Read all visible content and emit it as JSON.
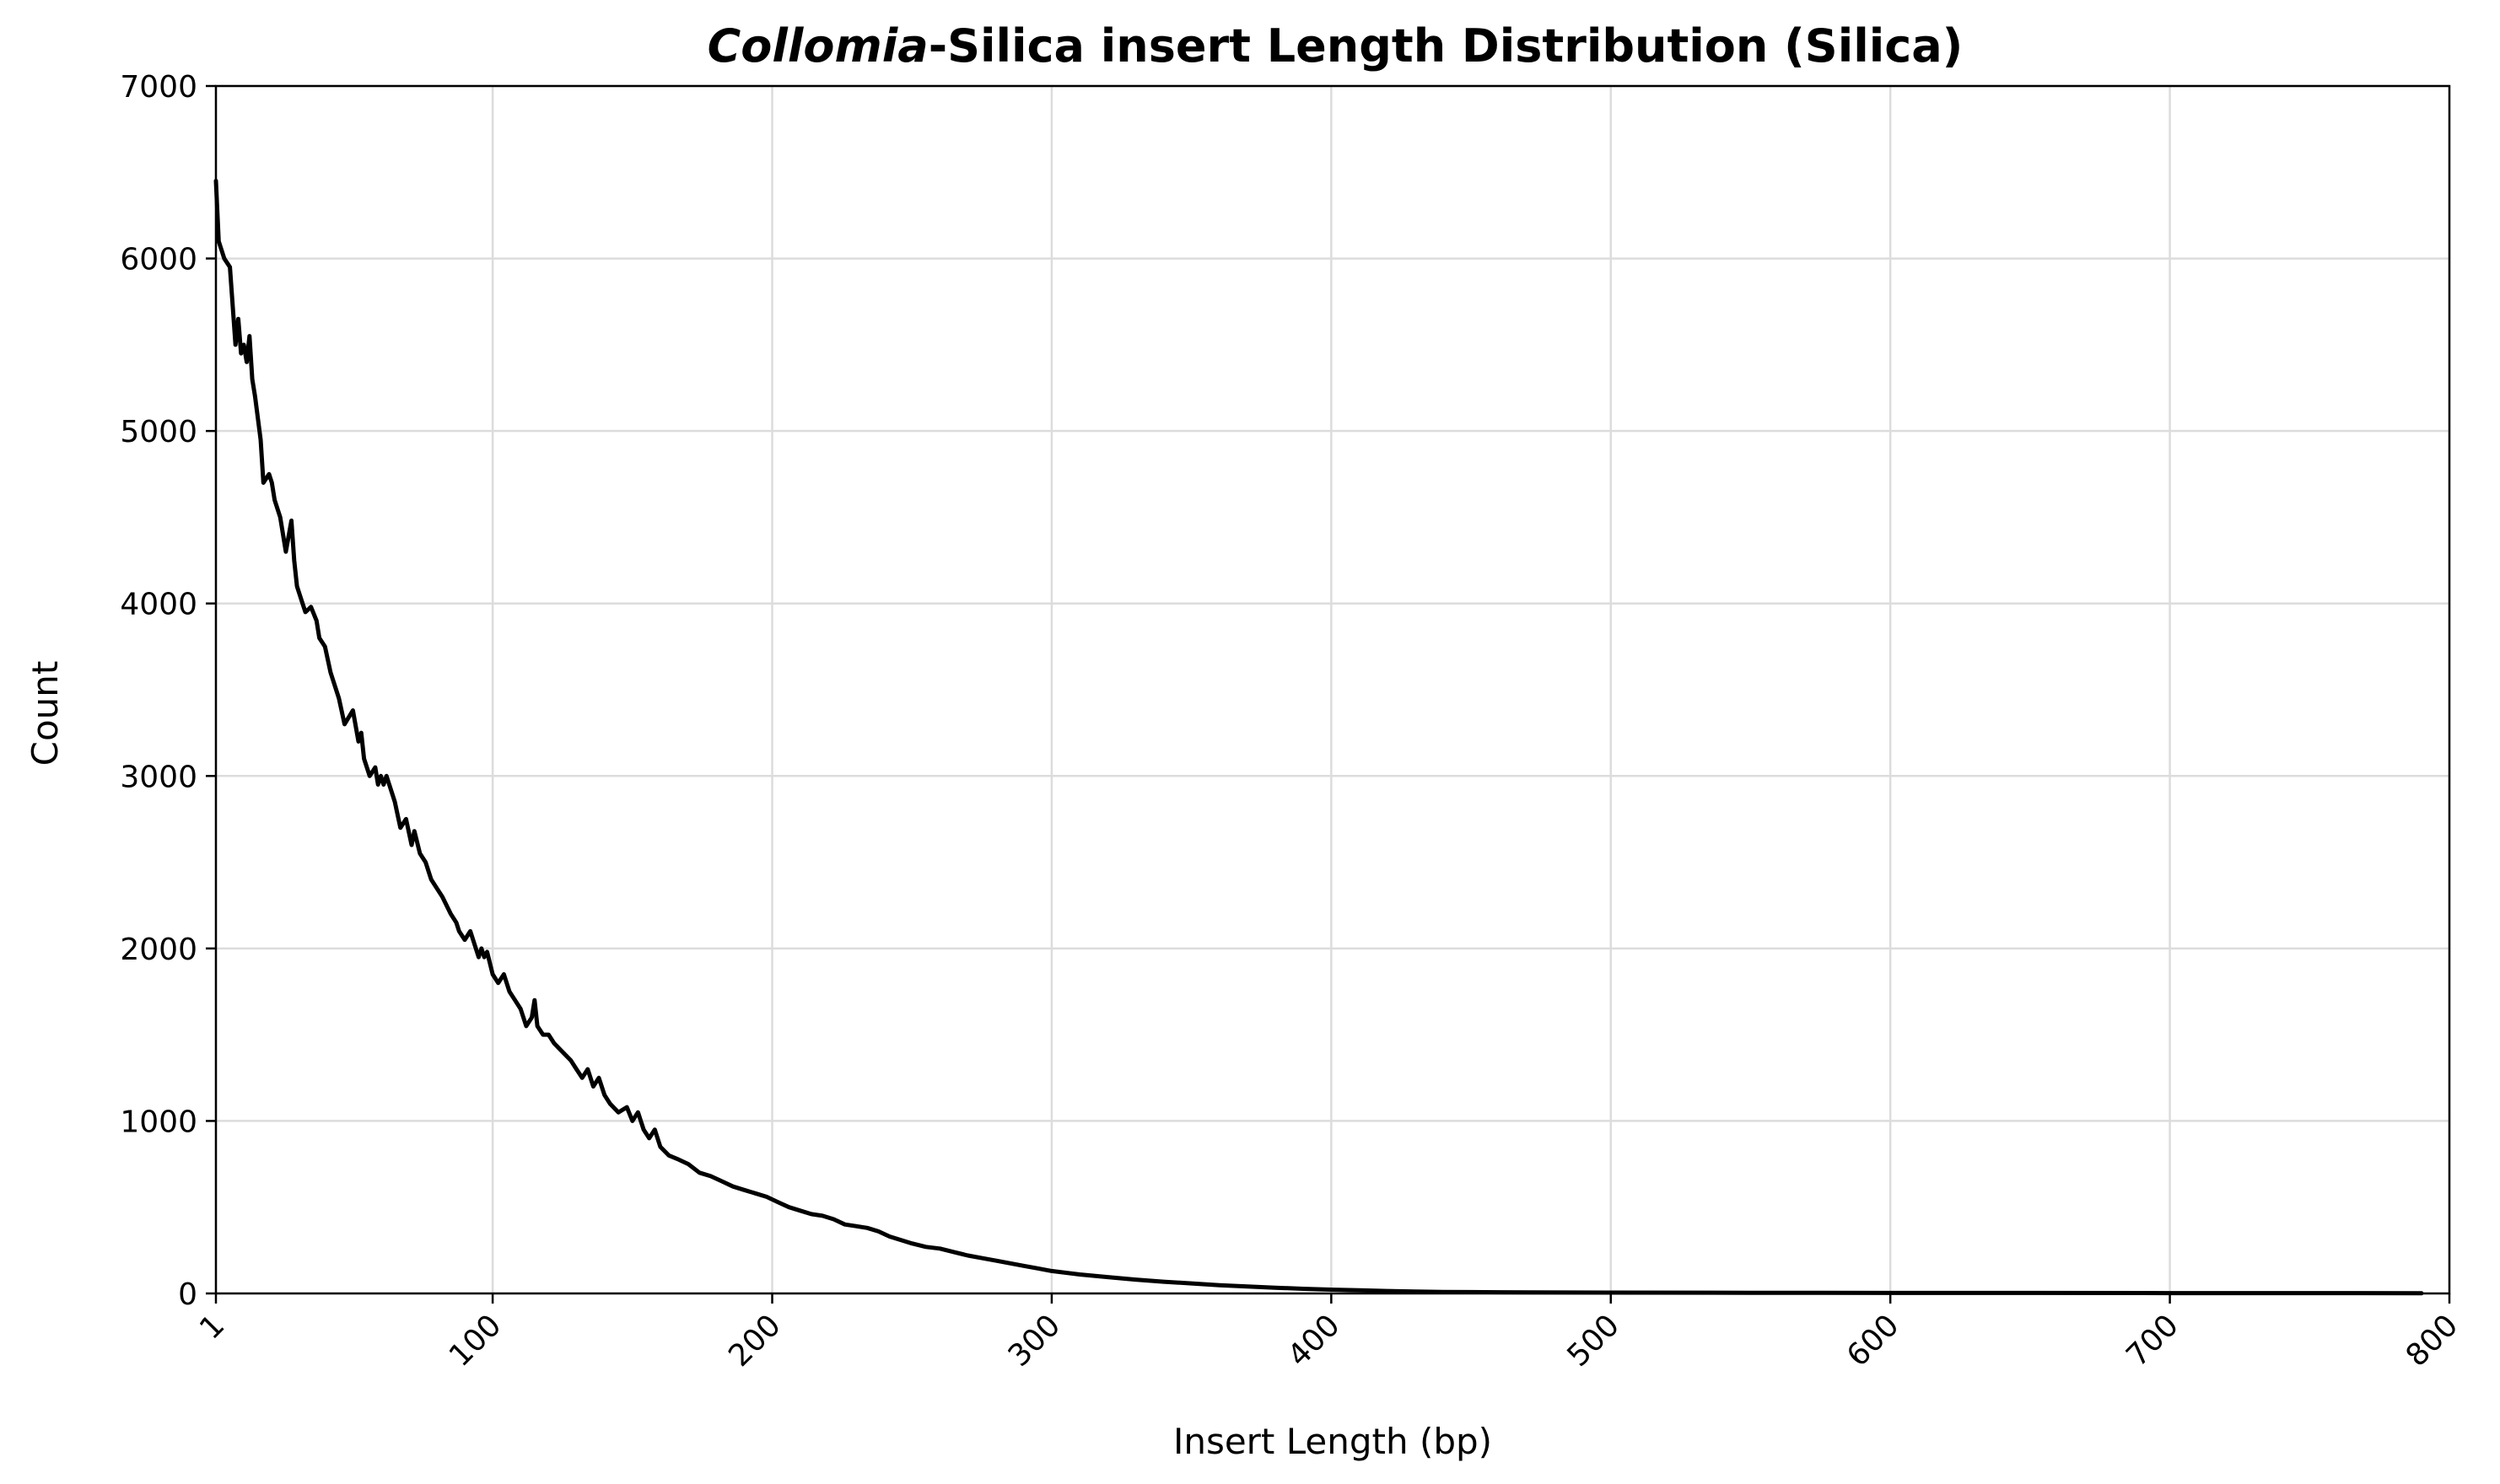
{
  "chart_data": {
    "type": "line",
    "title_italic": "Collomia",
    "title_rest": "-Silica insert Length Distribution (Silica)",
    "xlabel": "Insert Length (bp)",
    "ylabel": "Count",
    "xlim": [
      1,
      800
    ],
    "ylim": [
      0,
      7000
    ],
    "x_ticks": [
      1,
      100,
      200,
      300,
      400,
      500,
      600,
      700,
      800
    ],
    "x_tick_labels": [
      "1",
      "100",
      "200",
      "300",
      "400",
      "500",
      "600",
      "700",
      "800"
    ],
    "y_ticks": [
      0,
      1000,
      2000,
      3000,
      4000,
      5000,
      6000,
      7000
    ],
    "y_tick_labels": [
      "0",
      "1000",
      "2000",
      "3000",
      "4000",
      "5000",
      "6000",
      "7000"
    ],
    "grid": true,
    "legend": "none",
    "line_color": "#000000",
    "series": [
      {
        "x": [
          1,
          2,
          4,
          6,
          8,
          9,
          10,
          11,
          12,
          13,
          14,
          15,
          17,
          18,
          20,
          21,
          22,
          24,
          26,
          28,
          29,
          30,
          31,
          32,
          33,
          35,
          37,
          38,
          40,
          42,
          45,
          47,
          50,
          52,
          53,
          54,
          56,
          58,
          59,
          60,
          61,
          62,
          63,
          64,
          65,
          67,
          69,
          71,
          72,
          74,
          76,
          78,
          80,
          82,
          85,
          87,
          88,
          90,
          92,
          94,
          95,
          96,
          97,
          98,
          100,
          102,
          104,
          106,
          108,
          110,
          112,
          114,
          115,
          116,
          118,
          120,
          122,
          125,
          128,
          130,
          132,
          134,
          136,
          138,
          140,
          142,
          145,
          148,
          150,
          152,
          154,
          156,
          158,
          160,
          163,
          166,
          170,
          174,
          178,
          182,
          186,
          190,
          194,
          198,
          202,
          206,
          210,
          214,
          218,
          222,
          226,
          230,
          234,
          238,
          242,
          246,
          250,
          255,
          260,
          265,
          270,
          275,
          280,
          285,
          290,
          295,
          300,
          310,
          320,
          330,
          340,
          350,
          360,
          370,
          380,
          390,
          400,
          410,
          420,
          430,
          440,
          450,
          470,
          500,
          550,
          600,
          650,
          700,
          750,
          790
        ],
        "y": [
          6450,
          6100,
          6000,
          5950,
          5500,
          5650,
          5450,
          5500,
          5400,
          5550,
          5300,
          5200,
          4950,
          4700,
          4750,
          4700,
          4600,
          4500,
          4300,
          4480,
          4250,
          4100,
          4050,
          4000,
          3950,
          3980,
          3900,
          3800,
          3750,
          3600,
          3450,
          3300,
          3380,
          3200,
          3250,
          3100,
          3000,
          3050,
          2950,
          3000,
          2950,
          3000,
          2950,
          2900,
          2850,
          2700,
          2750,
          2600,
          2680,
          2550,
          2500,
          2400,
          2350,
          2300,
          2200,
          2150,
          2100,
          2050,
          2100,
          2000,
          1950,
          2000,
          1950,
          1980,
          1850,
          1800,
          1850,
          1750,
          1700,
          1650,
          1550,
          1600,
          1700,
          1550,
          1500,
          1500,
          1450,
          1400,
          1350,
          1300,
          1250,
          1300,
          1200,
          1250,
          1150,
          1100,
          1050,
          1080,
          1000,
          1050,
          950,
          900,
          950,
          850,
          800,
          780,
          750,
          700,
          680,
          650,
          620,
          600,
          580,
          560,
          530,
          500,
          480,
          460,
          450,
          430,
          400,
          390,
          380,
          360,
          330,
          310,
          290,
          270,
          260,
          240,
          220,
          205,
          190,
          175,
          160,
          145,
          130,
          110,
          95,
          80,
          68,
          58,
          48,
          40,
          33,
          27,
          22,
          18,
          14,
          11,
          9,
          8,
          6,
          5,
          4,
          3,
          3,
          2,
          2,
          1
        ]
      }
    ]
  }
}
